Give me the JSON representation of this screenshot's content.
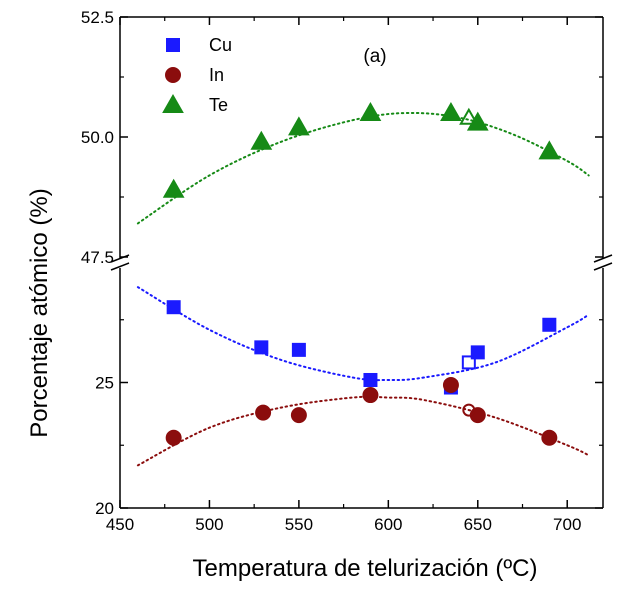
{
  "chart_data": {
    "type": "scatter",
    "panel_label": "(a)",
    "xlabel": "Temperatura de telurización  (ºC)",
    "ylabel": "Porcentaje atómico  (%)",
    "xlim": [
      450,
      720
    ],
    "x_ticks": [
      "450",
      "500",
      "550",
      "600",
      "650",
      "700"
    ],
    "y_axis_broken": true,
    "upper_ylim": [
      47.5,
      52.5
    ],
    "lower_ylim": [
      20,
      30
    ],
    "y_ticks_upper": [
      "47.5",
      "50.0",
      "52.5"
    ],
    "y_ticks_lower": [
      "20",
      "25"
    ],
    "legend": [
      {
        "label": "Cu",
        "marker": "square",
        "color": "#1a1aff"
      },
      {
        "label": "In",
        "marker": "circle",
        "color": "#8b0d0d"
      },
      {
        "label": "Te",
        "marker": "triangle",
        "color": "#168a16"
      }
    ],
    "legend_position": "top-left",
    "series": [
      {
        "name": "Cu",
        "marker": "square",
        "color": "#1a1aff",
        "segment": "lower",
        "points": [
          [
            480,
            28.0
          ],
          [
            529,
            26.4
          ],
          [
            550,
            26.3
          ],
          [
            590,
            25.1
          ],
          [
            635,
            24.8
          ],
          [
            650,
            26.2
          ],
          [
            690,
            27.3
          ]
        ],
        "open_points": [
          [
            645,
            25.8
          ]
        ],
        "fit": [
          [
            460,
            28.8
          ],
          [
            500,
            27.1
          ],
          [
            540,
            25.9
          ],
          [
            580,
            25.2
          ],
          [
            600,
            25.1
          ],
          [
            620,
            25.2
          ],
          [
            660,
            25.8
          ],
          [
            700,
            27.2
          ],
          [
            712,
            27.7
          ]
        ]
      },
      {
        "name": "In",
        "marker": "circle",
        "color": "#8b0d0d",
        "segment": "lower",
        "points": [
          [
            480,
            22.8
          ],
          [
            530,
            23.8
          ],
          [
            550,
            23.7
          ],
          [
            590,
            24.5
          ],
          [
            635,
            24.9
          ],
          [
            650,
            23.7
          ],
          [
            690,
            22.8
          ]
        ],
        "open_points": [
          [
            645,
            23.9
          ]
        ],
        "fit": [
          [
            460,
            21.7
          ],
          [
            500,
            23.2
          ],
          [
            540,
            24.0
          ],
          [
            580,
            24.4
          ],
          [
            600,
            24.4
          ],
          [
            620,
            24.3
          ],
          [
            660,
            23.6
          ],
          [
            700,
            22.5
          ],
          [
            712,
            22.1
          ]
        ]
      },
      {
        "name": "Te",
        "marker": "triangle",
        "color": "#168a16",
        "segment": "upper",
        "points": [
          [
            480,
            48.9
          ],
          [
            529,
            49.9
          ],
          [
            550,
            50.2
          ],
          [
            590,
            50.5
          ],
          [
            635,
            50.5
          ],
          [
            650,
            50.3
          ],
          [
            690,
            49.7
          ]
        ],
        "open_points": [
          [
            645,
            50.4
          ]
        ],
        "fit": [
          [
            460,
            48.2
          ],
          [
            500,
            49.2
          ],
          [
            540,
            49.9
          ],
          [
            580,
            50.35
          ],
          [
            610,
            50.5
          ],
          [
            640,
            50.4
          ],
          [
            670,
            50.05
          ],
          [
            700,
            49.5
          ],
          [
            712,
            49.2
          ]
        ]
      }
    ]
  }
}
